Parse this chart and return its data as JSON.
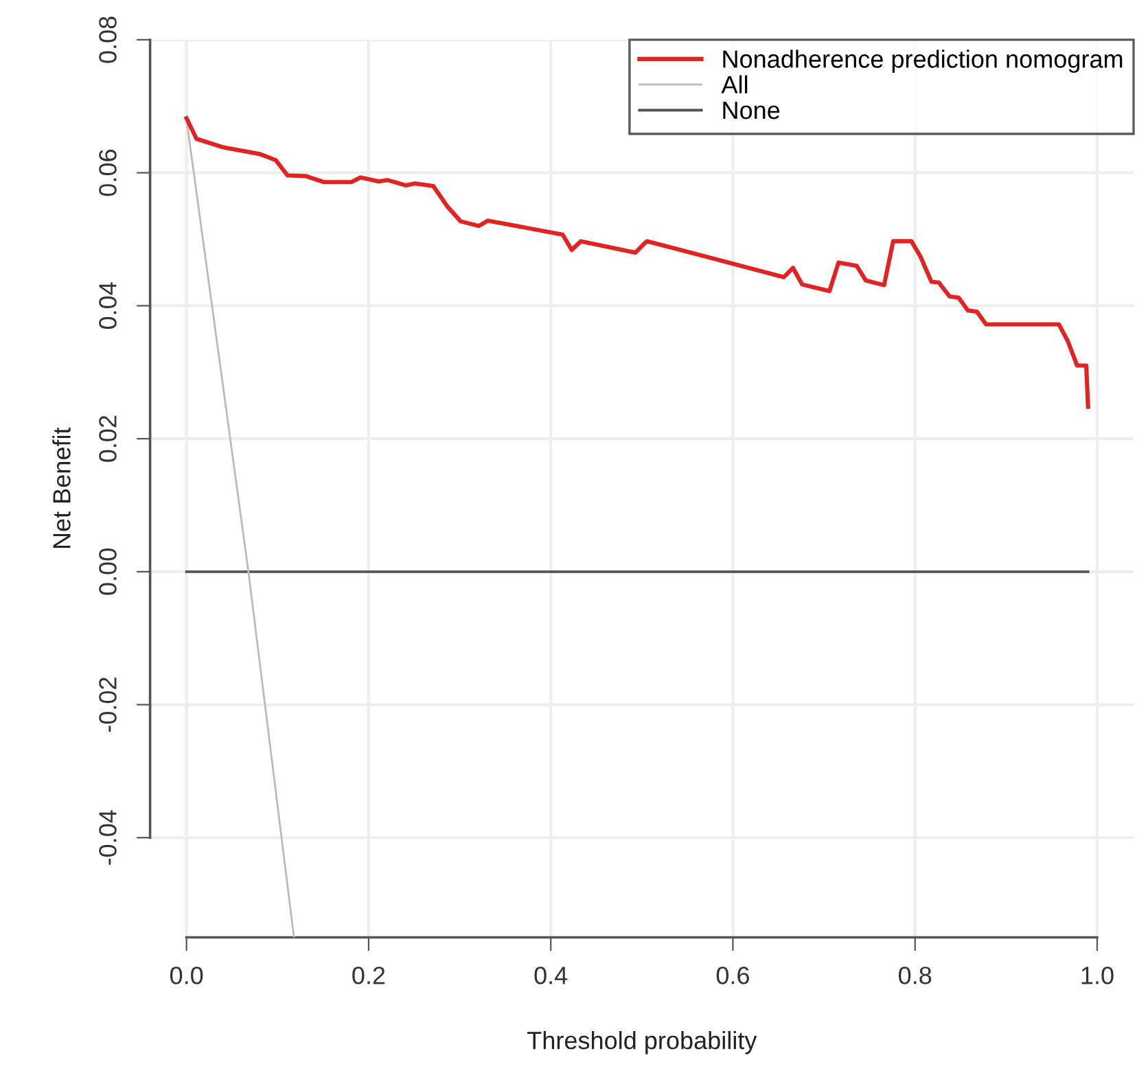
{
  "chart_data": {
    "type": "line",
    "xlabel": "Threshold probability",
    "ylabel": "Net Benefit",
    "xlim": [
      -0.04,
      1.04
    ],
    "ylim": [
      -0.055,
      0.08
    ],
    "xticks": [
      {
        "value": 0,
        "label": "0.0"
      },
      0.2,
      0.4,
      0.6,
      0.8,
      {
        "value": 1,
        "label": "1.0"
      }
    ],
    "yticks": [
      -0.04,
      -0.02,
      {
        "value": 0,
        "label": "0.00"
      },
      0.02,
      0.04,
      0.06,
      0.08
    ],
    "grid": true,
    "legend": "top right",
    "line_style": "solid",
    "marker": "none",
    "series": [
      {
        "name": "Nonadherence prediction nomogram",
        "color": "#e32222",
        "x": [
          0,
          0.011,
          0.041,
          0.081,
          0.098,
          0.111,
          0.131,
          0.151,
          0.181,
          0.191,
          0.211,
          0.221,
          0.241,
          0.251,
          0.271,
          0.286,
          0.301,
          0.321,
          0.331,
          0.413,
          0.423,
          0.433,
          0.493,
          0.503,
          0.506,
          0.656,
          0.666,
          0.676,
          0.706,
          0.716,
          0.736,
          0.746,
          0.766,
          0.776,
          0.796,
          0.806,
          0.818,
          0.826,
          0.838,
          0.848,
          0.858,
          0.868,
          0.878,
          0.958,
          0.968,
          0.978,
          0.988,
          0.99
        ],
        "values": [
          0.0682,
          0.0651,
          0.0638,
          0.0628,
          0.0619,
          0.0596,
          0.0595,
          0.0586,
          0.0586,
          0.0593,
          0.0587,
          0.0589,
          0.0581,
          0.0584,
          0.058,
          0.055,
          0.0527,
          0.052,
          0.0528,
          0.0507,
          0.0484,
          0.0497,
          0.048,
          0.0494,
          0.0497,
          0.0443,
          0.0457,
          0.0432,
          0.0422,
          0.0465,
          0.046,
          0.0438,
          0.0431,
          0.0497,
          0.0497,
          0.0474,
          0.0436,
          0.0435,
          0.0414,
          0.0412,
          0.0393,
          0.0391,
          0.0372,
          0.0372,
          0.0346,
          0.031,
          0.031,
          0.0248
        ]
      },
      {
        "name": "All",
        "color": "#bbbbbb",
        "x": [
          0,
          0.068,
          0.118
        ],
        "values": [
          0.068,
          0.0,
          -0.055
        ]
      },
      {
        "name": "None",
        "color": "#555555",
        "x": [
          0,
          0.99
        ],
        "values": [
          0.0,
          0.0
        ]
      }
    ]
  }
}
